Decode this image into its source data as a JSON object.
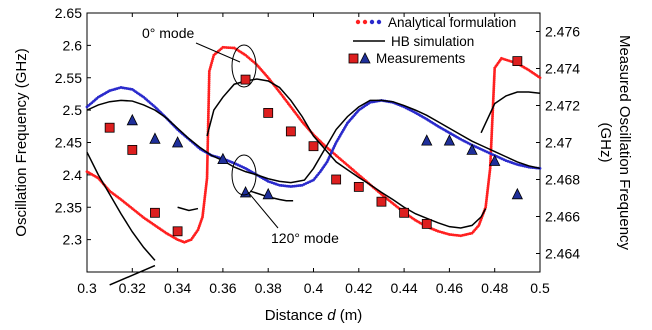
{
  "chart_data": {
    "type": "scatter",
    "xlabel_prefix": "Distance ",
    "xlabel_var": "d",
    "xlabel_suffix": " (m)",
    "ylabel_left": "Oscillation Frequency (GHz)",
    "ylabel_right_line1": "Measured Oscillation Frequency",
    "ylabel_right_line2": "(GHz)",
    "xlim": [
      0.3,
      0.5
    ],
    "ylim_left": [
      2.25,
      2.65
    ],
    "ylim_right": [
      2.463,
      2.477
    ],
    "x_ticks": [
      "0.3",
      "0.32",
      "0.34",
      "0.36",
      "0.38",
      "0.4",
      "0.42",
      "0.44",
      "0.46",
      "0.48",
      "0.5"
    ],
    "y_left_ticks": [
      "2.3",
      "2.35",
      "2.4",
      "2.45",
      "2.5",
      "2.55",
      "2.6",
      "2.65"
    ],
    "y_right_ticks": [
      "2.464",
      "2.466",
      "2.468",
      "2.47",
      "2.472",
      "2.474",
      "2.476"
    ],
    "legend": {
      "analytical": "Analytical formulation",
      "hb": "HB simulation",
      "measurements": "Measurements"
    },
    "annotations": {
      "mode0": "0° mode",
      "mode120": "120° mode"
    },
    "colors": {
      "analytical_red": "#ff2020",
      "analytical_blue": "#2a2acc",
      "hb": "#000000",
      "meas_square": "#dd1f1f",
      "meas_triangle": "#1f2f9a"
    },
    "series": [
      {
        "name": "Analytical formulation",
        "segments": [
          {
            "mode": "0°",
            "color": "red",
            "points": [
              [
                0.3,
                2.405
              ],
              [
                0.305,
                2.395
              ],
              [
                0.31,
                2.375
              ],
              [
                0.315,
                2.362
              ],
              [
                0.32,
                2.348
              ],
              [
                0.325,
                2.334
              ],
              [
                0.33,
                2.322
              ],
              [
                0.335,
                2.31
              ],
              [
                0.34,
                2.3
              ],
              [
                0.343,
                2.296
              ],
              [
                0.346,
                2.3
              ],
              [
                0.349,
                2.315
              ],
              [
                0.351,
                2.335
              ],
              [
                0.353,
                2.395
              ],
              [
                0.354,
                2.56
              ],
              [
                0.356,
                2.585
              ],
              [
                0.36,
                2.597
              ],
              [
                0.365,
                2.596
              ],
              [
                0.37,
                2.585
              ],
              [
                0.375,
                2.57
              ],
              [
                0.38,
                2.55
              ],
              [
                0.385,
                2.528
              ],
              [
                0.39,
                2.505
              ],
              [
                0.395,
                2.482
              ],
              [
                0.4,
                2.462
              ],
              [
                0.405,
                2.445
              ],
              [
                0.41,
                2.43
              ],
              [
                0.415,
                2.415
              ],
              [
                0.42,
                2.4
              ],
              [
                0.425,
                2.385
              ],
              [
                0.43,
                2.37
              ],
              [
                0.435,
                2.356
              ],
              [
                0.44,
                2.342
              ],
              [
                0.445,
                2.33
              ],
              [
                0.45,
                2.32
              ],
              [
                0.455,
                2.313
              ],
              [
                0.46,
                2.308
              ],
              [
                0.465,
                2.306
              ],
              [
                0.47,
                2.31
              ],
              [
                0.473,
                2.322
              ],
              [
                0.476,
                2.35
              ],
              [
                0.478,
                2.41
              ],
              [
                0.48,
                2.565
              ],
              [
                0.483,
                2.58
              ],
              [
                0.49,
                2.572
              ],
              [
                0.495,
                2.562
              ],
              [
                0.5,
                2.55
              ]
            ]
          },
          {
            "mode": "120°",
            "color": "blue",
            "points": [
              [
                0.3,
                2.505
              ],
              [
                0.305,
                2.52
              ],
              [
                0.31,
                2.53
              ],
              [
                0.315,
                2.535
              ],
              [
                0.32,
                2.532
              ],
              [
                0.325,
                2.52
              ],
              [
                0.33,
                2.505
              ],
              [
                0.335,
                2.488
              ],
              [
                0.34,
                2.47
              ],
              [
                0.345,
                2.455
              ],
              [
                0.35,
                2.44
              ],
              [
                0.355,
                2.43
              ],
              [
                0.36,
                2.425
              ],
              [
                0.365,
                2.418
              ],
              [
                0.37,
                2.41
              ],
              [
                0.375,
                2.4
              ],
              [
                0.38,
                2.39
              ],
              [
                0.385,
                2.384
              ],
              [
                0.39,
                2.382
              ],
              [
                0.395,
                2.384
              ],
              [
                0.4,
                2.392
              ],
              [
                0.403,
                2.405
              ],
              [
                0.406,
                2.42
              ],
              [
                0.41,
                2.45
              ],
              [
                0.415,
                2.48
              ],
              [
                0.42,
                2.5
              ],
              [
                0.425,
                2.512
              ],
              [
                0.43,
                2.515
              ],
              [
                0.435,
                2.512
              ],
              [
                0.44,
                2.505
              ],
              [
                0.445,
                2.496
              ],
              [
                0.45,
                2.486
              ],
              [
                0.455,
                2.475
              ],
              [
                0.46,
                2.465
              ],
              [
                0.465,
                2.455
              ],
              [
                0.47,
                2.446
              ],
              [
                0.475,
                2.438
              ],
              [
                0.48,
                2.43
              ],
              [
                0.485,
                2.422
              ],
              [
                0.49,
                2.416
              ],
              [
                0.495,
                2.412
              ],
              [
                0.5,
                2.41
              ]
            ]
          }
        ]
      },
      {
        "name": "HB simulation",
        "segments": [
          {
            "points": [
              [
                0.3,
                2.435
              ],
              [
                0.305,
                2.4
              ],
              [
                0.31,
                2.37
              ],
              [
                0.315,
                2.34
              ],
              [
                0.32,
                2.312
              ],
              [
                0.325,
                2.288
              ],
              [
                0.33,
                2.268
              ]
            ]
          },
          {
            "points": [
              [
                0.3,
                2.5
              ],
              [
                0.305,
                2.508
              ],
              [
                0.31,
                2.513
              ],
              [
                0.315,
                2.515
              ],
              [
                0.32,
                2.514
              ],
              [
                0.325,
                2.508
              ],
              [
                0.33,
                2.5
              ],
              [
                0.335,
                2.488
              ],
              [
                0.34,
                2.472
              ],
              [
                0.345,
                2.456
              ],
              [
                0.35,
                2.442
              ],
              [
                0.355,
                2.43
              ],
              [
                0.36,
                2.422
              ],
              [
                0.365,
                2.412
              ],
              [
                0.37,
                2.405
              ],
              [
                0.375,
                2.4
              ],
              [
                0.38,
                2.394
              ],
              [
                0.385,
                2.39
              ],
              [
                0.39,
                2.388
              ],
              [
                0.393,
                2.39
              ],
              [
                0.396,
                2.392
              ],
              [
                0.4,
                2.41
              ],
              [
                0.405,
                2.44
              ],
              [
                0.41,
                2.47
              ],
              [
                0.415,
                2.49
              ],
              [
                0.42,
                2.505
              ],
              [
                0.425,
                2.515
              ],
              [
                0.43,
                2.515
              ],
              [
                0.435,
                2.513
              ],
              [
                0.44,
                2.507
              ],
              [
                0.445,
                2.5
              ],
              [
                0.45,
                2.492
              ],
              [
                0.455,
                2.482
              ],
              [
                0.46,
                2.472
              ],
              [
                0.465,
                2.462
              ],
              [
                0.47,
                2.452
              ],
              [
                0.475,
                2.444
              ],
              [
                0.48,
                2.436
              ],
              [
                0.485,
                2.428
              ],
              [
                0.49,
                2.42
              ],
              [
                0.495,
                2.414
              ],
              [
                0.5,
                2.41
              ]
            ]
          },
          {
            "points": [
              [
                0.372,
                2.375
              ],
              [
                0.38,
                2.366
              ],
              [
                0.385,
                2.362
              ],
              [
                0.388,
                2.36
              ],
              [
                0.391,
                2.36
              ]
            ]
          },
          {
            "points": [
              [
                0.31,
                2.23
              ],
              [
                0.33,
                2.26
              ]
            ]
          },
          {
            "points": [
              [
                0.34,
                2.35
              ],
              [
                0.345,
                2.345
              ],
              [
                0.349,
                2.348
              ]
            ]
          },
          {
            "points": [
              [
                0.353,
                2.46
              ],
              [
                0.356,
                2.5
              ],
              [
                0.36,
                2.52
              ],
              [
                0.365,
                2.54
              ],
              [
                0.37,
                2.545
              ],
              [
                0.375,
                2.548
              ],
              [
                0.38,
                2.545
              ],
              [
                0.385,
                2.535
              ],
              [
                0.39,
                2.515
              ],
              [
                0.395,
                2.49
              ],
              [
                0.4,
                2.46
              ],
              [
                0.405,
                2.44
              ],
              [
                0.41,
                2.42
              ],
              [
                0.415,
                2.408
              ],
              [
                0.42,
                2.396
              ],
              [
                0.425,
                2.385
              ],
              [
                0.43,
                2.373
              ],
              [
                0.435,
                2.362
              ],
              [
                0.44,
                2.35
              ],
              [
                0.445,
                2.34
              ],
              [
                0.45,
                2.333
              ],
              [
                0.455,
                2.326
              ],
              [
                0.46,
                2.32
              ],
              [
                0.465,
                2.318
              ],
              [
                0.47,
                2.322
              ],
              [
                0.474,
                2.335
              ],
              [
                0.476,
                2.348
              ]
            ]
          },
          {
            "points": [
              [
                0.474,
                2.465
              ],
              [
                0.476,
                2.48
              ],
              [
                0.48,
                2.51
              ],
              [
                0.485,
                2.522
              ],
              [
                0.49,
                2.528
              ],
              [
                0.495,
                2.528
              ],
              [
                0.5,
                2.526
              ]
            ]
          }
        ]
      },
      {
        "name": "Measurements",
        "squares_right_axis": [
          [
            0.31,
            2.4708
          ],
          [
            0.32,
            2.4696
          ],
          [
            0.33,
            2.4662
          ],
          [
            0.34,
            2.4652
          ],
          [
            0.37,
            2.4734
          ],
          [
            0.38,
            2.4716
          ],
          [
            0.39,
            2.4706
          ],
          [
            0.4,
            2.4698
          ],
          [
            0.41,
            2.468
          ],
          [
            0.42,
            2.4676
          ],
          [
            0.43,
            2.4668
          ],
          [
            0.44,
            2.4662
          ],
          [
            0.45,
            2.4656
          ],
          [
            0.49,
            2.4744
          ]
        ],
        "triangles_right_axis": [
          [
            0.32,
            2.4712
          ],
          [
            0.33,
            2.4702
          ],
          [
            0.34,
            2.47
          ],
          [
            0.36,
            2.4691
          ],
          [
            0.37,
            2.4673
          ],
          [
            0.38,
            2.4672
          ],
          [
            0.45,
            2.4701
          ],
          [
            0.46,
            2.4701
          ],
          [
            0.47,
            2.4696
          ],
          [
            0.48,
            2.469
          ],
          [
            0.49,
            2.4672
          ]
        ]
      }
    ]
  }
}
